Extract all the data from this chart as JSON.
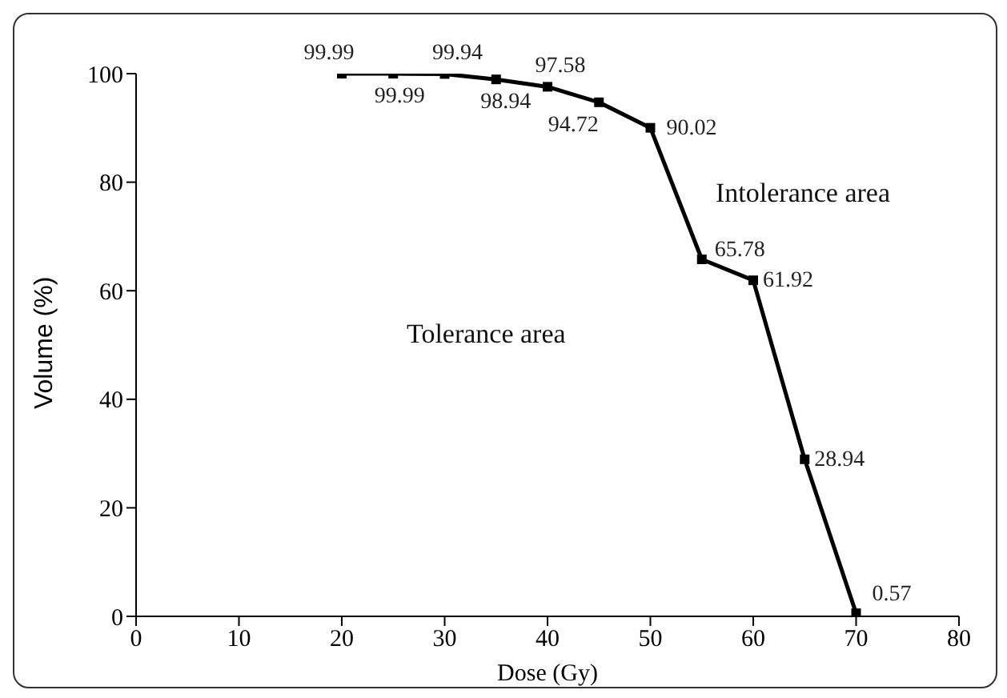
{
  "chart_data": {
    "type": "line",
    "xlabel": "Dose (Gy)",
    "ylabel": "Volume (%)",
    "x": [
      20,
      25,
      30,
      35,
      40,
      45,
      50,
      55,
      60,
      65,
      70
    ],
    "series": [
      {
        "color": "#000000",
        "values": [
          99.99,
          99.99,
          99.94,
          98.94,
          97.58,
          94.72,
          90.02,
          65.78,
          61.92,
          28.94,
          0.57
        ]
      }
    ],
    "xlim": [
      0,
      80
    ],
    "xticks": [
      0,
      10,
      20,
      30,
      40,
      50,
      60,
      70,
      80
    ],
    "ylim": [
      0,
      100
    ],
    "yticks": [
      0,
      20,
      40,
      60,
      80,
      100
    ],
    "data_labels": true,
    "marker": "square",
    "line_style": "solid",
    "grid": false,
    "legend": false,
    "annotations": [
      "Tolerance area",
      "Intolerance area"
    ]
  }
}
